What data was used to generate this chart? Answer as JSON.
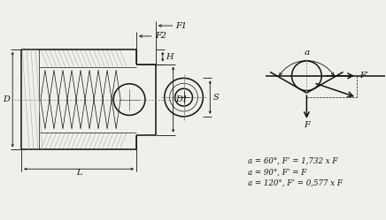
{
  "bg_color": "#f0f0ea",
  "line_color": "#111111",
  "formula_lines": [
    "a = 60°, F’ = 1,732 x F",
    "a = 90°, F’ = F",
    "a = 120°, F’ = 0,577 x F"
  ],
  "labels": {
    "F1": "F1",
    "F2": "F2",
    "H": "H",
    "D": "D",
    "D1": "D1",
    "L": "L",
    "S": "S",
    "a": "a",
    "F": "F",
    "Fprime": "F’"
  },
  "lw_main": 1.1,
  "lw_thin": 0.5,
  "lw_dim": 0.6,
  "fs": 7.0
}
